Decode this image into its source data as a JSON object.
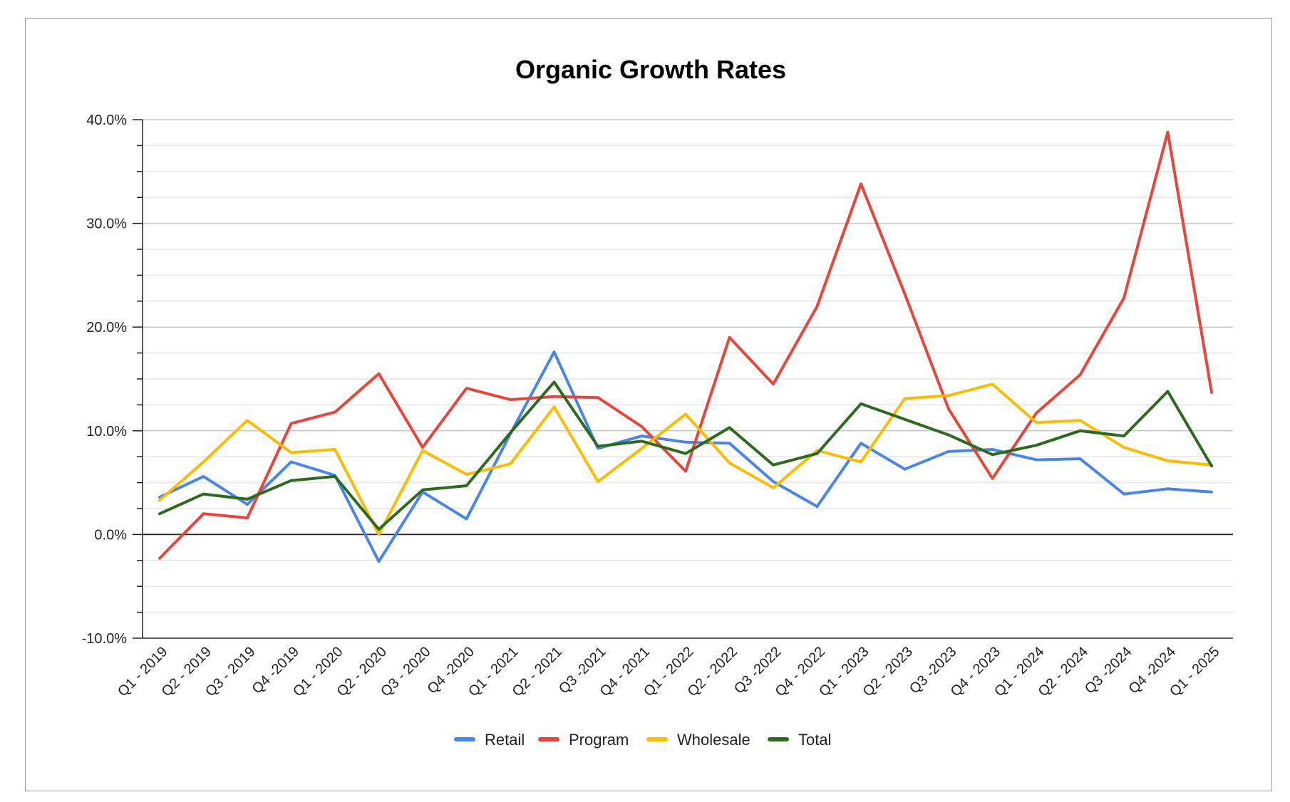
{
  "chart_data": {
    "type": "line",
    "title": "Organic Growth Rates",
    "xlabel": "",
    "ylabel": "",
    "ylim": [
      -0.1,
      0.4
    ],
    "yticks": [
      {
        "value": 0.4,
        "label": "40.0%"
      },
      {
        "value": 0.3,
        "label": "30.0%"
      },
      {
        "value": 0.2,
        "label": "20.0%"
      },
      {
        "value": 0.1,
        "label": "10.0%"
      },
      {
        "value": 0.0,
        "label": "0.0%"
      },
      {
        "value": -0.1,
        "label": "-10.0%"
      }
    ],
    "grid": true,
    "legend_position": "bottom",
    "categories": [
      "Q1 - 2019",
      "Q2 - 2019",
      "Q3 - 2019",
      "Q4 -2019",
      "Q1 - 2020",
      "Q2 - 2020",
      "Q3 - 2020",
      "Q4 -2020",
      "Q1 - 2021",
      "Q2 - 2021",
      "Q3 -2021",
      "Q4 - 2021",
      "Q1 - 2022",
      "Q2 - 2022",
      "Q3 -2022",
      "Q4 - 2022",
      "Q1 - 2023",
      "Q2 - 2023",
      "Q3 -2023",
      "Q4 - 2023",
      "Q1 - 2024",
      "Q2 - 2024",
      "Q3 -2024",
      "Q4 -2024",
      "Q1 - 2025"
    ],
    "series": [
      {
        "name": "Retail",
        "color": "#4a86e8",
        "values": [
          0.036,
          0.056,
          0.029,
          0.07,
          0.057,
          -0.026,
          0.041,
          0.015,
          0.097,
          0.176,
          0.083,
          0.095,
          0.089,
          0.088,
          0.051,
          0.027,
          0.088,
          0.063,
          0.08,
          0.082,
          0.072,
          0.073,
          0.039,
          0.044,
          0.041
        ]
      },
      {
        "name": "Program",
        "color": "#e8453c",
        "values": [
          -0.023,
          0.02,
          0.016,
          0.107,
          0.118,
          0.155,
          0.084,
          0.141,
          0.13,
          0.133,
          0.132,
          0.104,
          0.061,
          0.19,
          0.145,
          0.22,
          0.338,
          0.232,
          0.121,
          0.054,
          0.117,
          0.154,
          0.228,
          0.388,
          0.137
        ]
      },
      {
        "name": "Wholesale",
        "color": "#fbbc04",
        "values": [
          0.033,
          0.07,
          0.11,
          0.079,
          0.082,
          0.0,
          0.081,
          0.058,
          0.068,
          0.123,
          0.051,
          0.083,
          0.116,
          0.069,
          0.045,
          0.081,
          0.07,
          0.131,
          0.134,
          0.145,
          0.108,
          0.11,
          0.084,
          0.071,
          0.067
        ]
      },
      {
        "name": "Total",
        "color": "#2d6a1f",
        "values": [
          0.02,
          0.039,
          0.034,
          0.052,
          0.056,
          0.005,
          0.043,
          0.047,
          0.098,
          0.147,
          0.085,
          0.09,
          0.078,
          0.103,
          0.067,
          0.078,
          0.126,
          0.111,
          0.096,
          0.077,
          0.086,
          0.1,
          0.095,
          0.138,
          0.066
        ]
      }
    ]
  }
}
